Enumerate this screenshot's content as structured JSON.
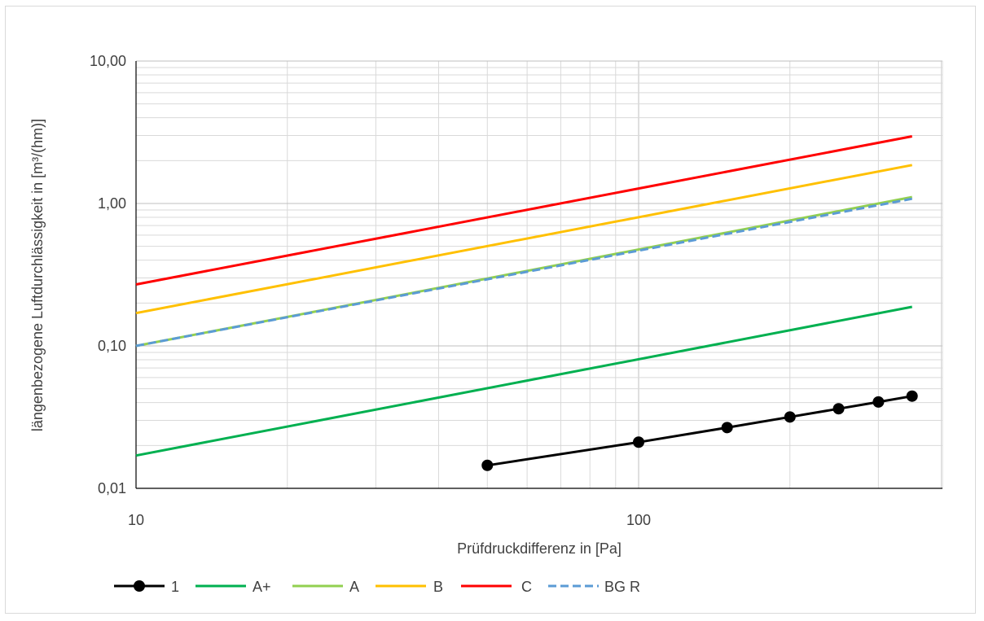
{
  "chart_data": {
    "type": "line",
    "title": "",
    "xlabel": "Prüfdruckdifferenz in [Pa]",
    "ylabel": "längenbezogene Luftdurchlässigkeit in [m³/(hm)]",
    "x_scale": "log",
    "y_scale": "log",
    "xlim": [
      10,
      1000
    ],
    "ylim": [
      0.01,
      10
    ],
    "x_ticks": [
      {
        "value": 10,
        "label": "10"
      },
      {
        "value": 100,
        "label": "100"
      }
    ],
    "y_ticks": [
      {
        "value": 0.01,
        "label": "0,01"
      },
      {
        "value": 0.1,
        "label": "0,10"
      },
      {
        "value": 1,
        "label": "1,00"
      },
      {
        "value": 10,
        "label": "10,00"
      }
    ],
    "grid": true,
    "legend_position": "bottom",
    "series": [
      {
        "name": "1",
        "color": "#000000",
        "dashed": false,
        "markers": true,
        "x": [
          50,
          100,
          150,
          200,
          250,
          300,
          350
        ],
        "y": [
          0.0145,
          0.0211,
          0.0267,
          0.0317,
          0.0362,
          0.0404,
          0.0444
        ]
      },
      {
        "name": "A+",
        "color": "#00b050",
        "dashed": false,
        "markers": false,
        "x": [
          10,
          350
        ],
        "y": [
          0.017,
          0.188
        ]
      },
      {
        "name": "A",
        "color": "#92d050",
        "dashed": false,
        "markers": false,
        "x": [
          10,
          350
        ],
        "y": [
          0.1,
          1.11
        ]
      },
      {
        "name": "B",
        "color": "#ffc000",
        "dashed": false,
        "markers": false,
        "x": [
          10,
          350
        ],
        "y": [
          0.17,
          1.86
        ]
      },
      {
        "name": "C",
        "color": "#ff0000",
        "dashed": false,
        "markers": false,
        "x": [
          10,
          350
        ],
        "y": [
          0.27,
          2.96
        ]
      },
      {
        "name": "BG R",
        "color": "#5b9bd5",
        "dashed": true,
        "markers": false,
        "x": [
          10,
          350
        ],
        "y": [
          0.1,
          1.08
        ]
      }
    ]
  }
}
